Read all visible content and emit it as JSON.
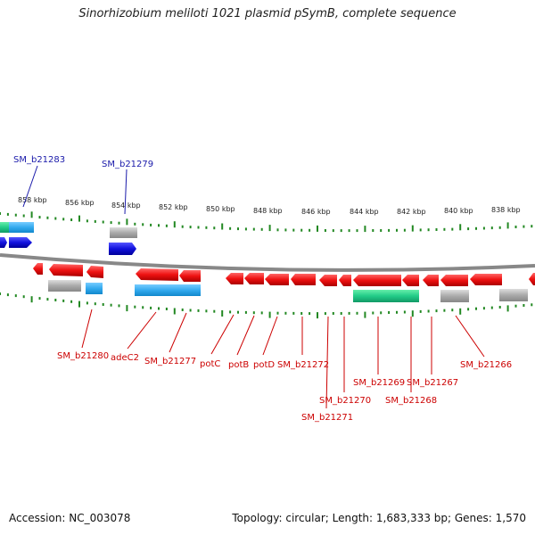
{
  "title": "Sinorhizobium meliloti 1021 plasmid pSymB, complete sequence",
  "accession": "Accession: NC_003078",
  "topology": "Topology: circular; Length: 1,683,333 bp; Genes: 1,570",
  "ruler_labels": [
    "858 kbp",
    "856 kbp",
    "854 kbp",
    "852 kbp",
    "850 kbp",
    "848 kbp",
    "846 kbp",
    "844 kbp",
    "842 kbp",
    "840 kbp",
    "838 kbp"
  ],
  "top_labels": [
    "SM_b21283",
    "SM_b21279"
  ],
  "bottom_labels": [
    "SM_b21280",
    "adeC2",
    "SM_b21277",
    "potC",
    "potB",
    "potD",
    "SM_b21272",
    "SM_b21270",
    "SM_b21271",
    "SM_b21269",
    "SM_b21268",
    "SM_b21267",
    "SM_b21266"
  ],
  "colors": {
    "gene": "#ee1111",
    "gene_top": "#1111dd",
    "cds": "#33aaee",
    "rna": "#22cc88",
    "misc": "#aaaaaa",
    "ticks": "#228822",
    "backbone": "#888888"
  }
}
